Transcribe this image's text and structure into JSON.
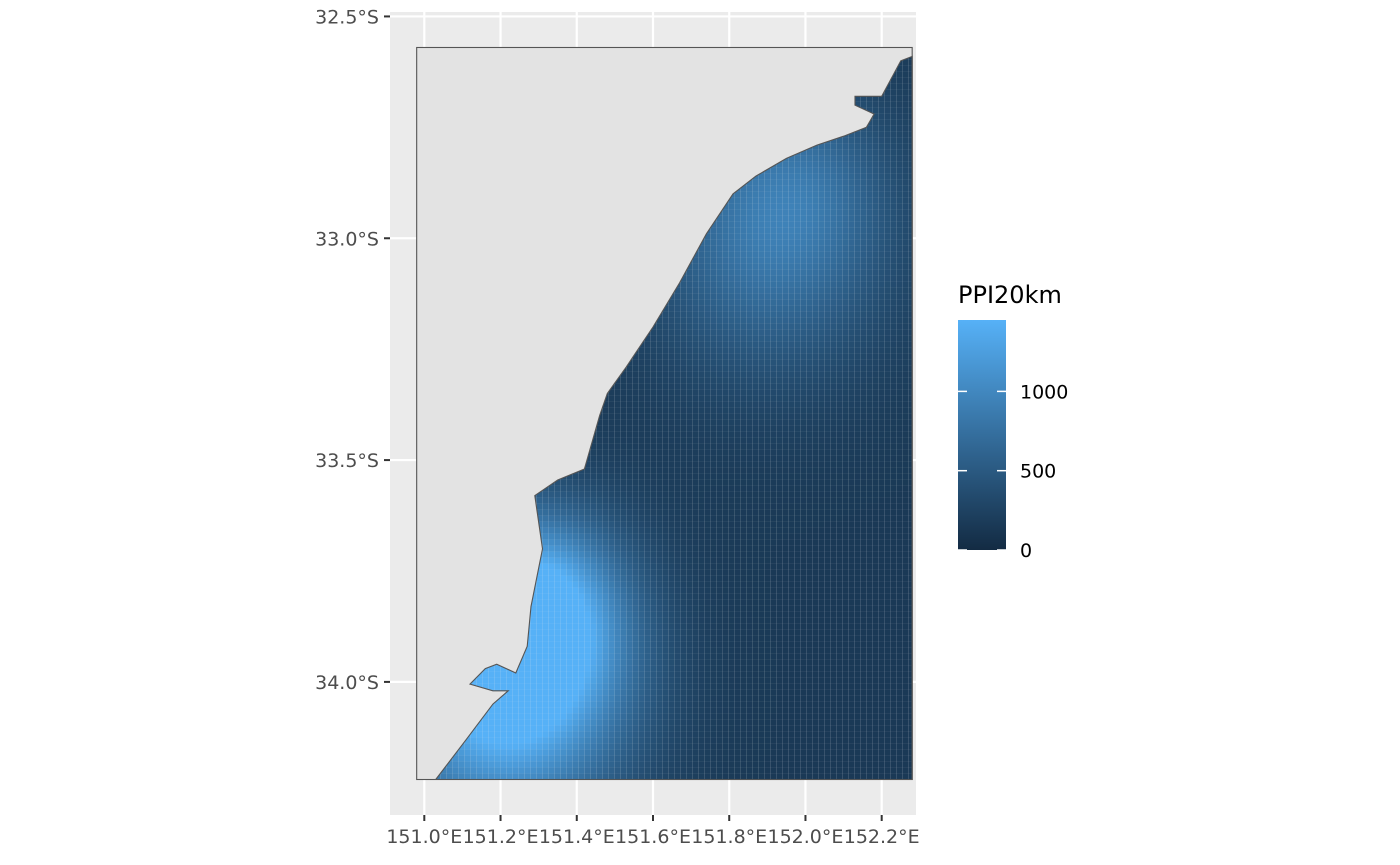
{
  "chart_data": {
    "type": "heatmap",
    "title": "",
    "xlabel": "",
    "ylabel": "",
    "x_ticks": [
      {
        "value": 151.0,
        "label": "151.0°E"
      },
      {
        "value": 151.2,
        "label": "151.2°E"
      },
      {
        "value": 151.4,
        "label": "151.4°E"
      },
      {
        "value": 151.6,
        "label": "151.6°E"
      },
      {
        "value": 151.8,
        "label": "151.8°E"
      },
      {
        "value": 152.0,
        "label": "152.0°E"
      },
      {
        "value": 152.2,
        "label": "152.2°E"
      }
    ],
    "y_ticks": [
      {
        "value": -32.5,
        "label": "32.5°S"
      },
      {
        "value": -33.0,
        "label": "33.0°S"
      },
      {
        "value": -33.5,
        "label": "33.5°S"
      },
      {
        "value": -34.0,
        "label": "34.0°S"
      }
    ],
    "xlim": [
      150.91,
      152.29
    ],
    "ylim": [
      -34.3,
      -32.49
    ],
    "extent": {
      "lon": [
        150.98,
        152.28
      ],
      "lat": [
        -34.22,
        -32.57
      ]
    },
    "coastline": [
      [
        151.03,
        -34.22
      ],
      [
        151.11,
        -34.13
      ],
      [
        151.18,
        -34.05
      ],
      [
        151.22,
        -34.02
      ],
      [
        151.18,
        -34.02
      ],
      [
        151.12,
        -34.005
      ],
      [
        151.16,
        -33.97
      ],
      [
        151.19,
        -33.96
      ],
      [
        151.24,
        -33.98
      ],
      [
        151.27,
        -33.92
      ],
      [
        151.28,
        -33.83
      ],
      [
        151.31,
        -33.7
      ],
      [
        151.29,
        -33.58
      ],
      [
        151.35,
        -33.545
      ],
      [
        151.42,
        -33.52
      ],
      [
        151.46,
        -33.4
      ],
      [
        151.48,
        -33.35
      ],
      [
        151.53,
        -33.29
      ],
      [
        151.6,
        -33.2
      ],
      [
        151.67,
        -33.1
      ],
      [
        151.74,
        -32.99
      ],
      [
        151.81,
        -32.9
      ],
      [
        151.87,
        -32.86
      ],
      [
        151.95,
        -32.82
      ],
      [
        152.03,
        -32.79
      ],
      [
        152.1,
        -32.77
      ],
      [
        152.16,
        -32.75
      ],
      [
        152.18,
        -32.72
      ],
      [
        152.13,
        -32.7
      ],
      [
        152.13,
        -32.68
      ],
      [
        152.2,
        -32.68
      ],
      [
        152.25,
        -32.6
      ],
      [
        152.28,
        -32.59
      ]
    ],
    "hotspots": [
      {
        "lon": 151.2,
        "lat": -34.0,
        "value": 1450,
        "spread_deg": 0.22
      },
      {
        "lon": 151.9,
        "lat": -33.0,
        "value": 620,
        "spread_deg": 0.22
      },
      {
        "lon": 151.3,
        "lat": -33.85,
        "value": 900,
        "spread_deg": 0.15
      },
      {
        "lon": 152.0,
        "lat": -32.87,
        "value": 250,
        "spread_deg": 0.15
      }
    ],
    "background_value": 150,
    "colors": {
      "panel_bg": "#ebebeb",
      "grid": "#ffffff",
      "land": "#e3e3e3",
      "outline": "#555555",
      "low": "#132b43",
      "high": "#56b1f7"
    },
    "legend": {
      "title": "PPI20km",
      "position": "right",
      "min": 0,
      "max": 1450,
      "breaks": [
        {
          "value": 0,
          "label": "0"
        },
        {
          "value": 500,
          "label": "500"
        },
        {
          "value": 1000,
          "label": "1000"
        }
      ]
    }
  }
}
